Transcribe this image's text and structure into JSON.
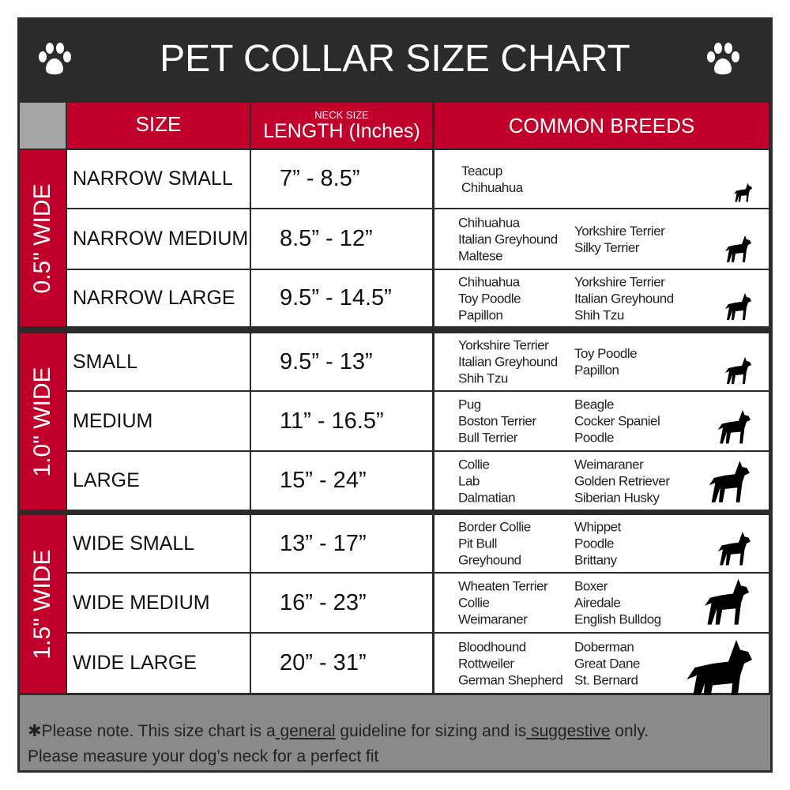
{
  "title": "PET COLLAR SIZE CHART",
  "headers": {
    "size": "SIZE",
    "length_small": "NECK SIZE",
    "length": "LENGTH (Inches)",
    "breeds": "COMMON BREEDS"
  },
  "groups": [
    {
      "label": "0.5\" WIDE"
    },
    {
      "label": "1.0\" WIDE"
    },
    {
      "label": "1.5\" WIDE"
    }
  ],
  "rows": [
    {
      "size": "NARROW SMALL",
      "length": "7” - 8.5”",
      "breeds_a": [
        "Teacup",
        "Chihuahua"
      ],
      "breeds_b": [],
      "dog": "yorkie-icon"
    },
    {
      "size": "NARROW MEDIUM",
      "length": "8.5” - 12”",
      "breeds_a": [
        "Chihuahua",
        "Italian Greyhound",
        "Maltese"
      ],
      "breeds_b": [
        "Yorkshire Terrier",
        "Silky Terrier"
      ],
      "dog": "chihuahua-icon"
    },
    {
      "size": "NARROW LARGE",
      "length": "9.5” - 14.5”",
      "breeds_a": [
        "Chihuahua",
        "Toy Poodle",
        "Papillon"
      ],
      "breeds_b": [
        "Yorkshire Terrier",
        "Italian Greyhound",
        "Shih Tzu"
      ],
      "dog": "pomeranian-icon"
    },
    {
      "size": "SMALL",
      "length": "9.5” - 13”",
      "breeds_a": [
        "Yorkshire Terrier",
        "Italian Greyhound",
        "Shih Tzu"
      ],
      "breeds_b": [
        "Toy Poodle",
        "Papillon"
      ],
      "dog": "pomeranian-icon"
    },
    {
      "size": "MEDIUM",
      "length": "11” - 16.5”",
      "breeds_a": [
        "Pug",
        "Boston Terrier",
        "Bull Terrier"
      ],
      "breeds_b": [
        "Beagle",
        "Cocker Spaniel",
        "Poodle"
      ],
      "dog": "dachshund-icon"
    },
    {
      "size": "LARGE",
      "length": "15” - 24”",
      "breeds_a": [
        "Collie",
        "Lab",
        "Dalmatian"
      ],
      "breeds_b": [
        "Weimaraner",
        "Golden Retriever",
        "Siberian Husky"
      ],
      "dog": "shepherd-icon"
    },
    {
      "size": "WIDE SMALL",
      "length": "13” - 17”",
      "breeds_a": [
        "Border Collie",
        "Pit Bull",
        "Greyhound"
      ],
      "breeds_b": [
        "Whippet",
        "Poodle",
        "Brittany"
      ],
      "dog": "bulldog-icon"
    },
    {
      "size": "WIDE MEDIUM",
      "length": "16” - 23”",
      "breeds_a": [
        "Wheaten Terrier",
        "Collie",
        "Weimaraner"
      ],
      "breeds_b": [
        "Boxer",
        "Airedale",
        "English Bulldog"
      ],
      "dog": "pitbull-icon"
    },
    {
      "size": "WIDE LARGE",
      "length": "20” - 31”",
      "breeds_a": [
        "Bloodhound",
        "Rottweiler",
        "German Shepherd"
      ],
      "breeds_b": [
        "Doberman",
        "Great Dane",
        "St. Bernard"
      ],
      "dog": "doberman-icon"
    }
  ],
  "footer": {
    "p1": "✱Please note. This size chart is a",
    "u1": " general",
    "p2": " guideline for sizing and is",
    "u2": " suggestive",
    "p3": " only.",
    "line2": "Please measure your dog’s neck for a perfect fit"
  },
  "colors": {
    "header_bg": "#2b2b2b",
    "accent": "#c0002a",
    "footer_bg": "#8a8a8a"
  }
}
